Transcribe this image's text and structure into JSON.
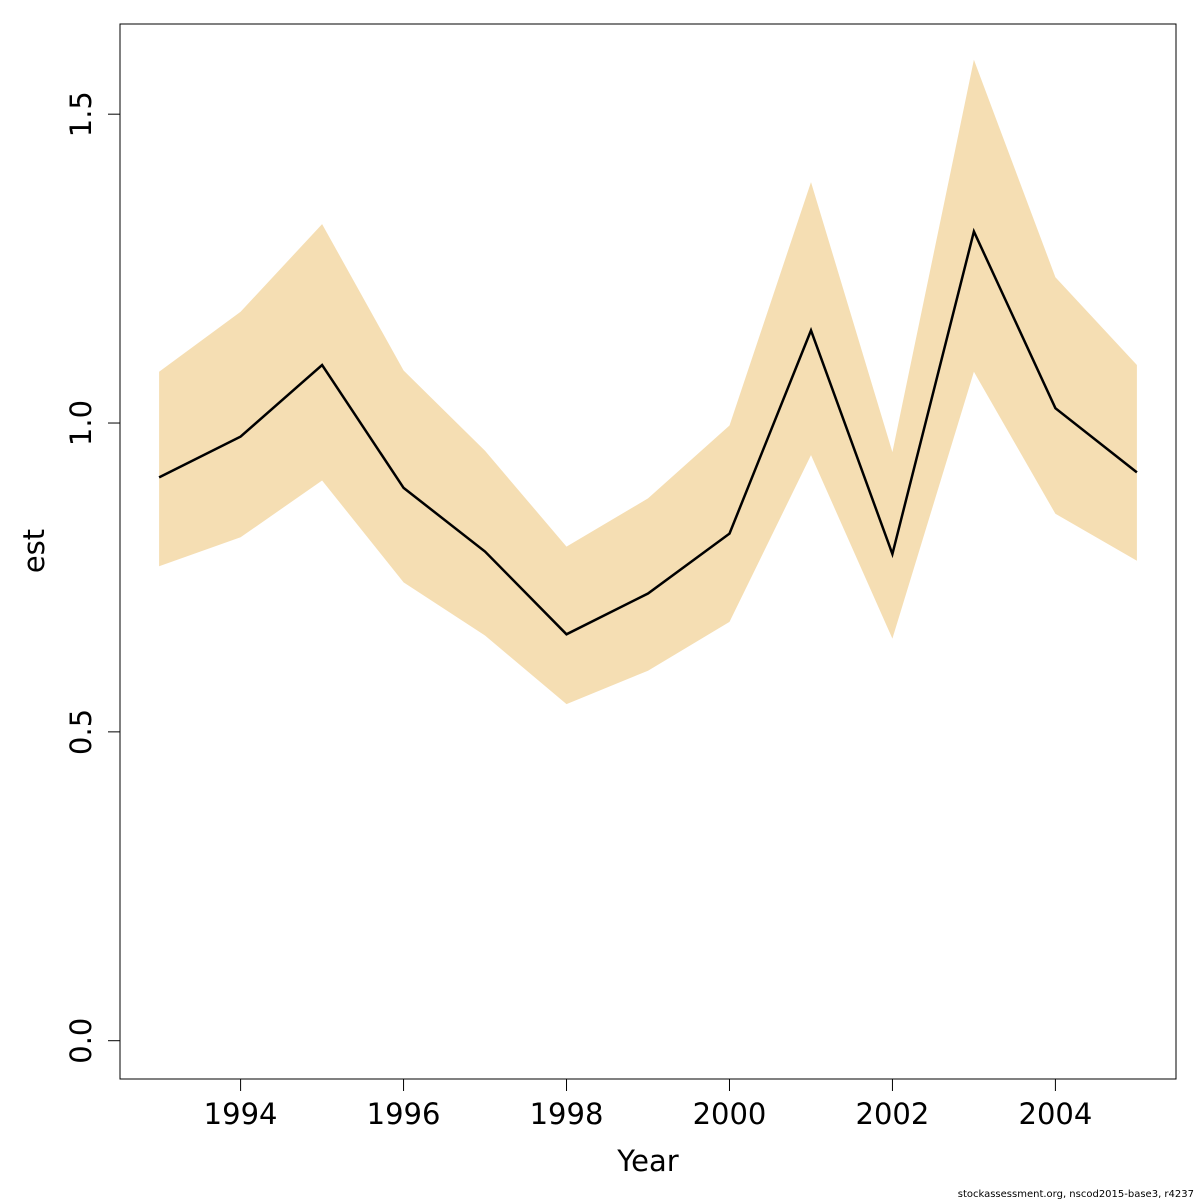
{
  "chart_data": {
    "type": "line",
    "xlabel": "Year",
    "ylabel": "est",
    "x": [
      1993,
      1994,
      1995,
      1996,
      1997,
      1998,
      1999,
      2000,
      2001,
      2002,
      2003,
      2004,
      2005
    ],
    "series": [
      {
        "values": [
          0.912,
          0.978,
          1.094,
          0.895,
          0.792,
          0.658,
          0.724,
          0.821,
          1.15,
          0.788,
          1.31,
          1.024,
          0.92
        ],
        "lower": [
          0.768,
          0.815,
          0.907,
          0.742,
          0.656,
          0.545,
          0.599,
          0.678,
          0.948,
          0.651,
          1.083,
          0.853,
          0.777
        ],
        "upper": [
          1.083,
          1.18,
          1.322,
          1.085,
          0.955,
          0.8,
          0.878,
          0.996,
          1.39,
          0.953,
          1.588,
          1.236,
          1.094
        ]
      }
    ],
    "x_ticks": [
      "1994",
      "1996",
      "1998",
      "2000",
      "2002",
      "2004"
    ],
    "y_ticks": [
      "0.0",
      "0.5",
      "1.0",
      "1.5"
    ],
    "xlim": [
      1992.52,
      2005.48
    ],
    "ylim": [
      -0.062,
      1.646
    ],
    "band_color": "#F5DEB3",
    "line_color": "#000000",
    "grid": false,
    "legend": "none"
  },
  "footer": {
    "credit": "stockassessment.org, nscod2015-base3, r4237"
  }
}
